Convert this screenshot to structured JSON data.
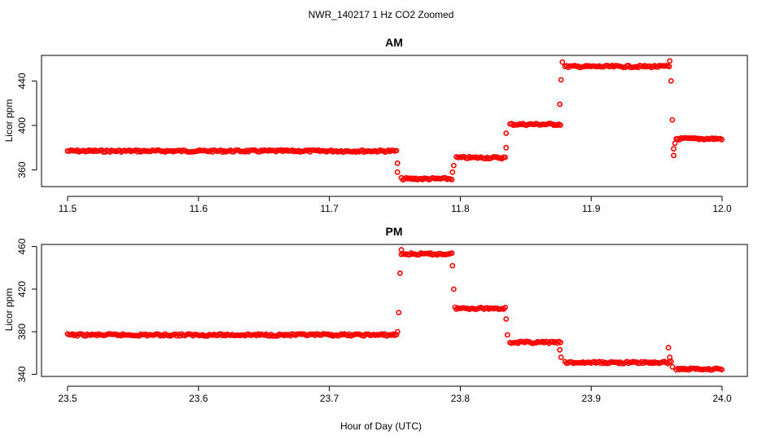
{
  "title": "NWR_140217  1 Hz CO2 Zoomed",
  "xlabel": "Hour of Day (UTC)",
  "point_color": "#ff0000",
  "chart_data": [
    {
      "type": "scatter",
      "title": "AM",
      "xlabel": "Hour of Day (UTC)",
      "ylabel": "Licor ppm",
      "xlim": [
        11.5,
        12.0
      ],
      "ylim": [
        345,
        463
      ],
      "xticks": [
        11.5,
        11.6,
        11.7,
        11.8,
        11.9,
        12.0
      ],
      "xtick_labels": [
        "11.5",
        "11.6",
        "11.7",
        "11.8",
        "11.9",
        "12.0"
      ],
      "yticks": [
        360,
        400,
        440
      ],
      "ytick_labels": [
        "360",
        "400",
        "440"
      ],
      "segments": [
        {
          "x_start": 11.5,
          "x_end": 11.752,
          "y": 377
        },
        {
          "x_start": 11.755,
          "x_end": 11.794,
          "y": 352
        },
        {
          "x_start": 11.797,
          "x_end": 11.835,
          "y": 371
        },
        {
          "x_start": 11.838,
          "x_end": 11.877,
          "y": 401
        },
        {
          "x_start": 11.88,
          "x_end": 11.96,
          "y": 453
        },
        {
          "x_start": 11.965,
          "x_end": 12.0,
          "y": 388
        }
      ],
      "transitions": [
        {
          "x": 11.752,
          "y": 366
        },
        {
          "x": 11.752,
          "y": 358
        },
        {
          "x": 11.794,
          "y": 358
        },
        {
          "x": 11.795,
          "y": 364
        },
        {
          "x": 11.835,
          "y": 380
        },
        {
          "x": 11.835,
          "y": 393
        },
        {
          "x": 11.876,
          "y": 419
        },
        {
          "x": 11.877,
          "y": 441
        },
        {
          "x": 11.878,
          "y": 457
        },
        {
          "x": 11.96,
          "y": 458
        },
        {
          "x": 11.961,
          "y": 440
        },
        {
          "x": 11.962,
          "y": 405
        },
        {
          "x": 11.963,
          "y": 379
        },
        {
          "x": 11.963,
          "y": 373
        },
        {
          "x": 11.964,
          "y": 384
        }
      ]
    },
    {
      "type": "scatter",
      "title": "PM",
      "xlabel": "Hour of Day (UTC)",
      "ylabel": "Licor ppm",
      "xlim": [
        23.5,
        24.0
      ],
      "ylim": [
        338,
        462
      ],
      "xticks": [
        23.5,
        23.6,
        23.7,
        23.8,
        23.9,
        24.0
      ],
      "xtick_labels": [
        "23.5",
        "23.6",
        "23.7",
        "23.8",
        "23.9",
        "24.0"
      ],
      "yticks": [
        340,
        380,
        420,
        460
      ],
      "ytick_labels": [
        "340",
        "380",
        "420",
        "460"
      ],
      "segments": [
        {
          "x_start": 23.5,
          "x_end": 23.752,
          "y": 377
        },
        {
          "x_start": 23.755,
          "x_end": 23.794,
          "y": 453
        },
        {
          "x_start": 23.797,
          "x_end": 23.835,
          "y": 402
        },
        {
          "x_start": 23.838,
          "x_end": 23.877,
          "y": 370
        },
        {
          "x_start": 23.88,
          "x_end": 23.96,
          "y": 351
        },
        {
          "x_start": 23.965,
          "x_end": 24.0,
          "y": 345
        }
      ],
      "transitions": [
        {
          "x": 23.752,
          "y": 380
        },
        {
          "x": 23.753,
          "y": 398
        },
        {
          "x": 23.754,
          "y": 435
        },
        {
          "x": 23.755,
          "y": 457
        },
        {
          "x": 23.794,
          "y": 442
        },
        {
          "x": 23.795,
          "y": 420
        },
        {
          "x": 23.796,
          "y": 403
        },
        {
          "x": 23.835,
          "y": 392
        },
        {
          "x": 23.836,
          "y": 377
        },
        {
          "x": 23.876,
          "y": 363
        },
        {
          "x": 23.877,
          "y": 356
        },
        {
          "x": 23.959,
          "y": 365
        },
        {
          "x": 23.96,
          "y": 356
        },
        {
          "x": 23.961,
          "y": 352
        },
        {
          "x": 23.962,
          "y": 347
        }
      ]
    }
  ]
}
